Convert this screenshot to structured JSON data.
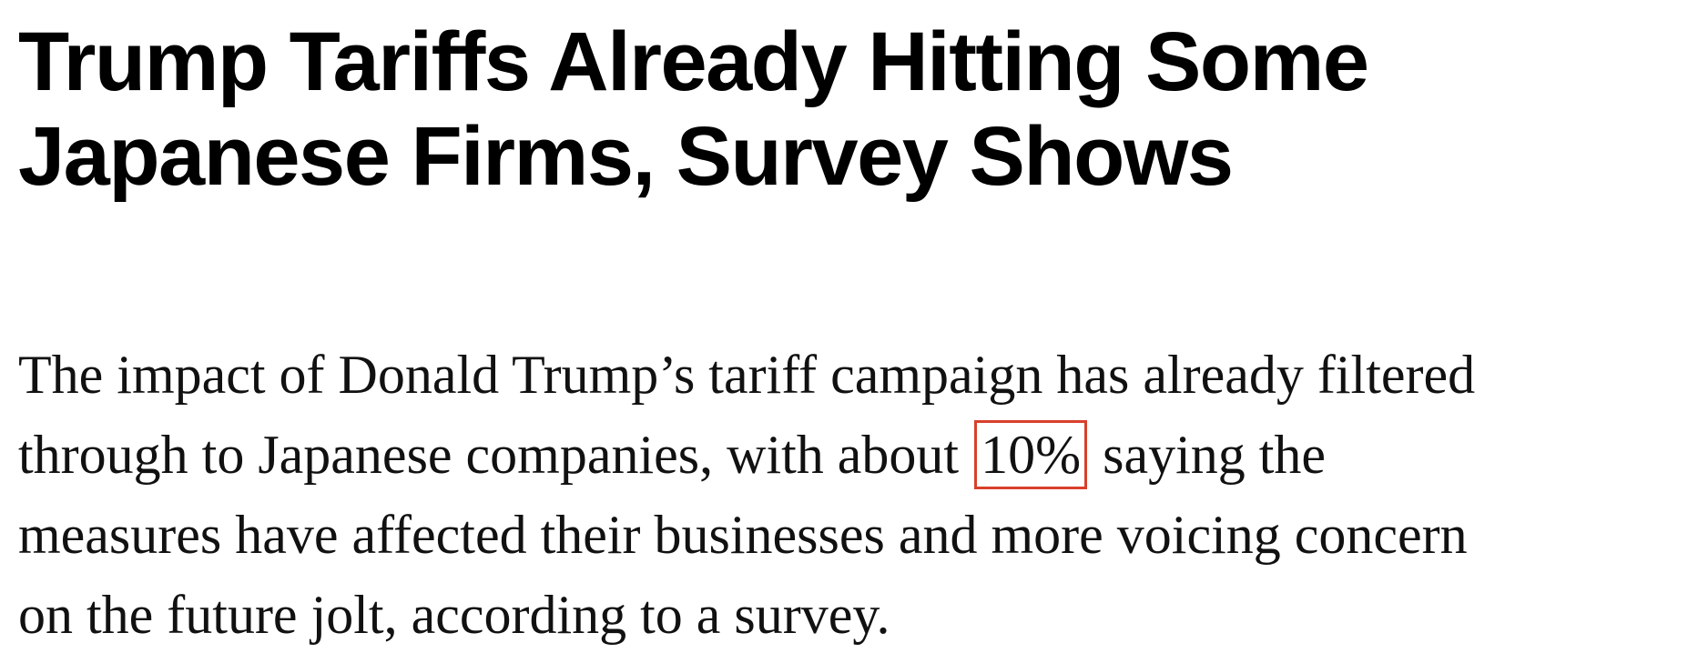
{
  "headline": {
    "line1": "Trump Tariffs Already Hitting Some",
    "line2": "Japanese Firms, Survey Shows"
  },
  "lede": {
    "line1": "The impact of Donald Trump’s tariff campaign has already filtered",
    "line2_before": "through to Japanese companies, with about ",
    "line2_highlight": "10%",
    "line2_after": " saying the",
    "line3": "measures have affected their businesses and more voicing concern",
    "line4": "on the future jolt, according to a survey."
  },
  "colors": {
    "highlight_border": "#d9402b",
    "text": "#000000",
    "background": "#ffffff"
  }
}
